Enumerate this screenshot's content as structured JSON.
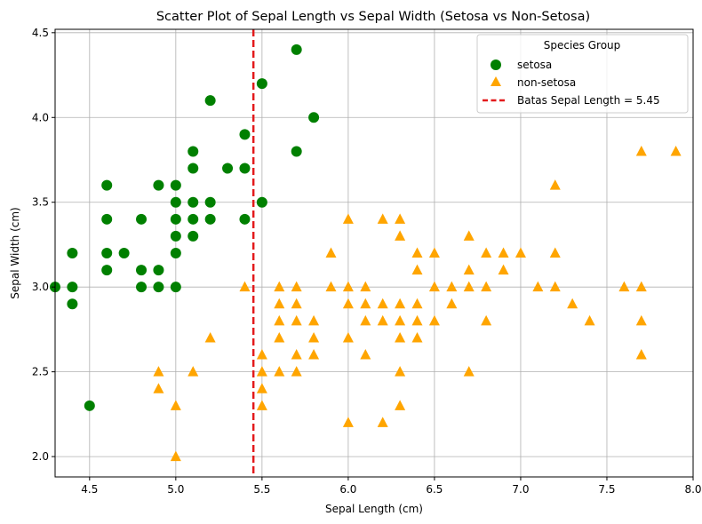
{
  "chart_data": {
    "type": "scatter",
    "title": "Scatter Plot of Sepal Length vs Sepal Width (Setosa vs Non-Setosa)",
    "xlabel": "Sepal Length (cm)",
    "ylabel": "Sepal Width (cm)",
    "xlim": [
      4.3,
      8.0
    ],
    "ylim": [
      1.88,
      4.52
    ],
    "xticks": [
      4.5,
      5.0,
      5.5,
      6.0,
      6.5,
      7.0,
      7.5,
      8.0
    ],
    "xtick_labels": [
      "4.5",
      "5.0",
      "5.5",
      "6.0",
      "6.5",
      "7.0",
      "7.5",
      "8.0"
    ],
    "yticks": [
      2.0,
      2.5,
      3.0,
      3.5,
      4.0,
      4.5
    ],
    "ytick_labels": [
      "2.0",
      "2.5",
      "3.0",
      "3.5",
      "4.0",
      "4.5"
    ],
    "grid": true,
    "legend": {
      "title": "Species Group",
      "placement": "top-right"
    },
    "series": [
      {
        "name": "setosa",
        "marker": "circle",
        "color": "#008000",
        "points": [
          [
            4.3,
            3.0
          ],
          [
            4.4,
            2.9
          ],
          [
            4.4,
            3.0
          ],
          [
            4.4,
            3.2
          ],
          [
            4.5,
            2.3
          ],
          [
            4.6,
            3.1
          ],
          [
            4.6,
            3.2
          ],
          [
            4.6,
            3.4
          ],
          [
            4.6,
            3.6
          ],
          [
            4.7,
            3.2
          ],
          [
            4.8,
            3.0
          ],
          [
            4.8,
            3.1
          ],
          [
            4.8,
            3.4
          ],
          [
            4.9,
            3.0
          ],
          [
            4.9,
            3.1
          ],
          [
            4.9,
            3.6
          ],
          [
            5.0,
            3.0
          ],
          [
            5.0,
            3.2
          ],
          [
            5.0,
            3.3
          ],
          [
            5.0,
            3.4
          ],
          [
            5.0,
            3.5
          ],
          [
            5.0,
            3.6
          ],
          [
            5.1,
            3.3
          ],
          [
            5.1,
            3.4
          ],
          [
            5.1,
            3.5
          ],
          [
            5.1,
            3.7
          ],
          [
            5.1,
            3.8
          ],
          [
            5.2,
            3.4
          ],
          [
            5.2,
            3.5
          ],
          [
            5.2,
            4.1
          ],
          [
            5.3,
            3.7
          ],
          [
            5.4,
            3.4
          ],
          [
            5.4,
            3.7
          ],
          [
            5.4,
            3.9
          ],
          [
            5.5,
            3.5
          ],
          [
            5.5,
            4.2
          ],
          [
            5.7,
            3.8
          ],
          [
            5.7,
            4.4
          ],
          [
            5.8,
            4.0
          ]
        ]
      },
      {
        "name": "non-setosa",
        "marker": "triangle",
        "color": "#FFA500",
        "points": [
          [
            4.9,
            2.4
          ],
          [
            4.9,
            2.5
          ],
          [
            5.0,
            2.0
          ],
          [
            5.0,
            2.3
          ],
          [
            5.1,
            2.5
          ],
          [
            5.2,
            2.7
          ],
          [
            5.4,
            3.0
          ],
          [
            5.5,
            2.3
          ],
          [
            5.5,
            2.4
          ],
          [
            5.5,
            2.5
          ],
          [
            5.5,
            2.6
          ],
          [
            5.6,
            2.5
          ],
          [
            5.6,
            2.7
          ],
          [
            5.6,
            2.8
          ],
          [
            5.6,
            2.9
          ],
          [
            5.6,
            3.0
          ],
          [
            5.7,
            2.5
          ],
          [
            5.7,
            2.6
          ],
          [
            5.7,
            2.8
          ],
          [
            5.7,
            2.9
          ],
          [
            5.7,
            3.0
          ],
          [
            5.8,
            2.6
          ],
          [
            5.8,
            2.7
          ],
          [
            5.8,
            2.8
          ],
          [
            5.9,
            3.0
          ],
          [
            5.9,
            3.2
          ],
          [
            6.0,
            2.2
          ],
          [
            6.0,
            2.7
          ],
          [
            6.0,
            2.9
          ],
          [
            6.0,
            3.0
          ],
          [
            6.0,
            3.4
          ],
          [
            6.1,
            2.6
          ],
          [
            6.1,
            2.8
          ],
          [
            6.1,
            2.9
          ],
          [
            6.1,
            3.0
          ],
          [
            6.2,
            2.2
          ],
          [
            6.2,
            2.8
          ],
          [
            6.2,
            2.9
          ],
          [
            6.2,
            3.4
          ],
          [
            6.3,
            2.3
          ],
          [
            6.3,
            2.5
          ],
          [
            6.3,
            2.7
          ],
          [
            6.3,
            2.8
          ],
          [
            6.3,
            2.9
          ],
          [
            6.3,
            3.3
          ],
          [
            6.3,
            3.4
          ],
          [
            6.4,
            2.7
          ],
          [
            6.4,
            2.8
          ],
          [
            6.4,
            2.9
          ],
          [
            6.4,
            3.1
          ],
          [
            6.4,
            3.2
          ],
          [
            6.5,
            2.8
          ],
          [
            6.5,
            3.0
          ],
          [
            6.5,
            3.2
          ],
          [
            6.6,
            2.9
          ],
          [
            6.6,
            3.0
          ],
          [
            6.7,
            2.5
          ],
          [
            6.7,
            3.0
          ],
          [
            6.7,
            3.1
          ],
          [
            6.7,
            3.3
          ],
          [
            6.8,
            2.8
          ],
          [
            6.8,
            3.0
          ],
          [
            6.8,
            3.2
          ],
          [
            6.9,
            3.1
          ],
          [
            6.9,
            3.2
          ],
          [
            7.0,
            3.2
          ],
          [
            7.1,
            3.0
          ],
          [
            7.2,
            3.0
          ],
          [
            7.2,
            3.2
          ],
          [
            7.2,
            3.6
          ],
          [
            7.3,
            2.9
          ],
          [
            7.4,
            2.8
          ],
          [
            7.6,
            3.0
          ],
          [
            7.7,
            2.6
          ],
          [
            7.7,
            2.8
          ],
          [
            7.7,
            3.0
          ],
          [
            7.7,
            3.8
          ],
          [
            7.9,
            3.8
          ]
        ]
      }
    ],
    "reference_line": {
      "name": "Batas Sepal Length = 5.45",
      "orientation": "vertical",
      "x": 5.45,
      "color": "#E31A1C",
      "style": "dashed"
    }
  }
}
